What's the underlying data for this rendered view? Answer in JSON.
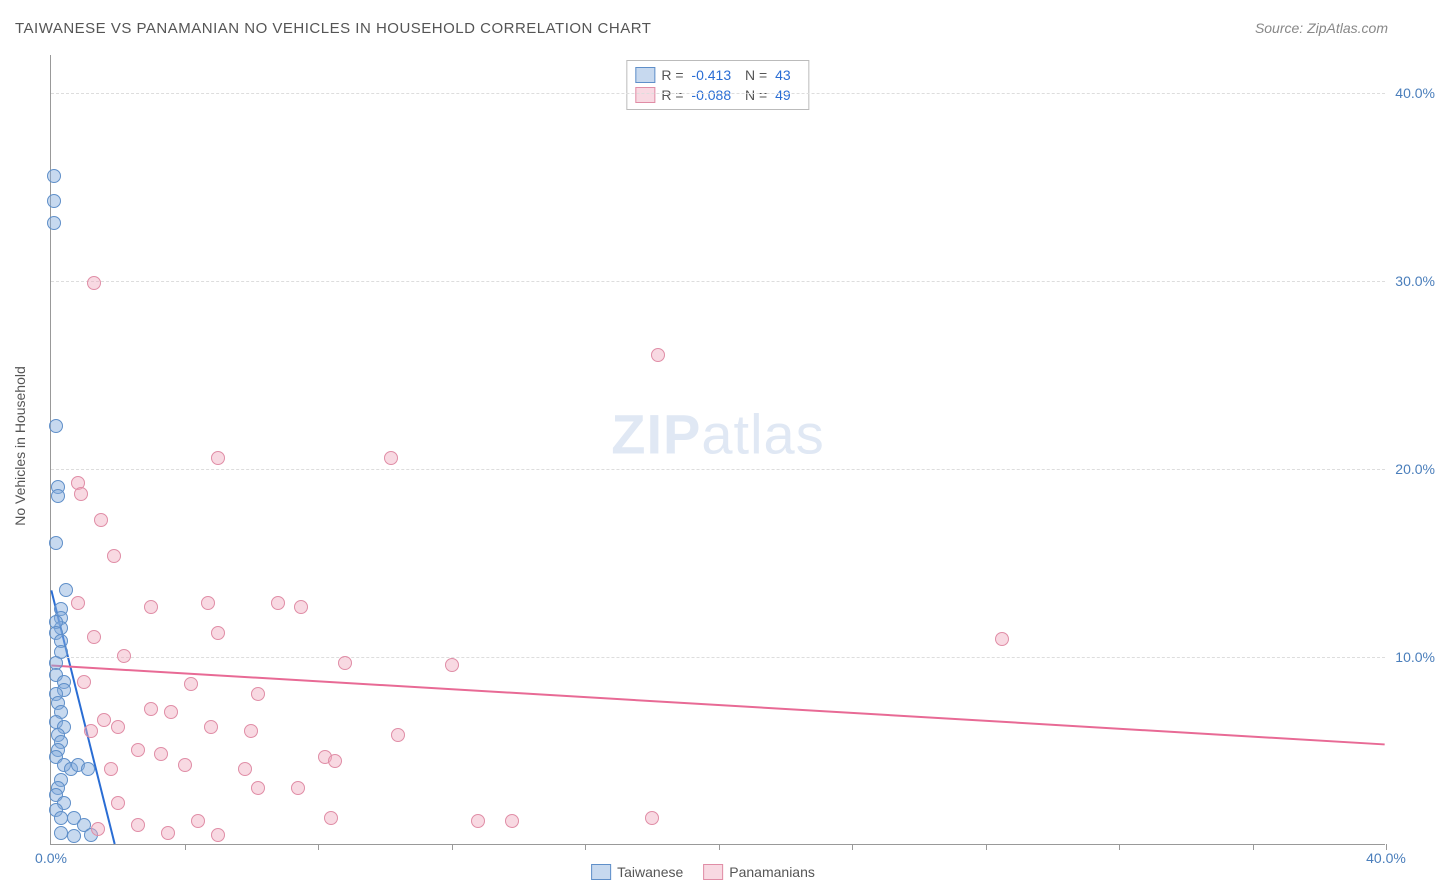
{
  "title": "TAIWANESE VS PANAMANIAN NO VEHICLES IN HOUSEHOLD CORRELATION CHART",
  "source": "Source: ZipAtlas.com",
  "y_axis_label": "No Vehicles in Household",
  "watermark_zip": "ZIP",
  "watermark_atlas": "atlas",
  "chart": {
    "xlim": [
      0,
      40
    ],
    "ylim": [
      0,
      42
    ],
    "y_ticks": [
      10,
      20,
      30,
      40
    ],
    "y_tick_labels": [
      "10.0%",
      "20.0%",
      "30.0%",
      "40.0%"
    ],
    "x_ticks": [
      4,
      8,
      12,
      16,
      20,
      24,
      28,
      32,
      36,
      40
    ],
    "x_tick_labels": {
      "0": "0.0%",
      "40": "40.0%"
    },
    "grid_color": "#dddddd",
    "axis_color": "#999999",
    "background_color": "#ffffff",
    "title_color": "#555555",
    "label_color": "#555555",
    "tick_label_color": "#4a7ebb",
    "point_radius": 7
  },
  "series": [
    {
      "name": "Taiwanese",
      "fill": "rgba(130,170,220,0.45)",
      "stroke": "#5f8fc9",
      "trend_color": "#2a6dd4",
      "trend": {
        "x1": 0,
        "y1": 13.5,
        "x2": 1.9,
        "y2": 0
      },
      "stats": {
        "R": "-0.413",
        "N": "43"
      },
      "points": [
        [
          0.1,
          35.5
        ],
        [
          0.1,
          34.2
        ],
        [
          0.1,
          33.0
        ],
        [
          0.15,
          22.2
        ],
        [
          0.2,
          19.0
        ],
        [
          0.2,
          18.5
        ],
        [
          0.15,
          16.0
        ],
        [
          0.45,
          13.5
        ],
        [
          0.3,
          12.5
        ],
        [
          0.3,
          12.0
        ],
        [
          0.3,
          11.5
        ],
        [
          0.15,
          11.8
        ],
        [
          0.15,
          11.2
        ],
        [
          0.3,
          10.8
        ],
        [
          0.3,
          10.2
        ],
        [
          0.15,
          9.6
        ],
        [
          0.15,
          9.0
        ],
        [
          0.4,
          8.6
        ],
        [
          0.4,
          8.2
        ],
        [
          0.15,
          8.0
        ],
        [
          0.2,
          7.5
        ],
        [
          0.3,
          7.0
        ],
        [
          0.15,
          6.5
        ],
        [
          0.4,
          6.2
        ],
        [
          0.2,
          5.8
        ],
        [
          0.3,
          5.4
        ],
        [
          0.2,
          5.0
        ],
        [
          0.15,
          4.6
        ],
        [
          0.4,
          4.2
        ],
        [
          0.6,
          4.0
        ],
        [
          0.8,
          4.2
        ],
        [
          1.1,
          4.0
        ],
        [
          0.3,
          3.4
        ],
        [
          0.2,
          3.0
        ],
        [
          0.15,
          2.6
        ],
        [
          0.4,
          2.2
        ],
        [
          0.15,
          1.8
        ],
        [
          0.3,
          1.4
        ],
        [
          0.7,
          1.4
        ],
        [
          1.0,
          1.0
        ],
        [
          0.3,
          0.6
        ],
        [
          0.7,
          0.4
        ],
        [
          1.2,
          0.5
        ]
      ]
    },
    {
      "name": "Panamanians",
      "fill": "rgba(240,170,190,0.45)",
      "stroke": "#e08da6",
      "trend_color": "#e86a95",
      "trend": {
        "x1": 0,
        "y1": 9.5,
        "x2": 40,
        "y2": 5.3
      },
      "stats": {
        "R": "-0.088",
        "N": "49"
      },
      "points": [
        [
          1.3,
          29.8
        ],
        [
          18.2,
          26.0
        ],
        [
          5.0,
          20.5
        ],
        [
          10.2,
          20.5
        ],
        [
          0.8,
          19.2
        ],
        [
          0.9,
          18.6
        ],
        [
          1.5,
          17.2
        ],
        [
          1.9,
          15.3
        ],
        [
          0.8,
          12.8
        ],
        [
          3.0,
          12.6
        ],
        [
          4.7,
          12.8
        ],
        [
          6.8,
          12.8
        ],
        [
          7.5,
          12.6
        ],
        [
          5.0,
          11.2
        ],
        [
          1.3,
          11.0
        ],
        [
          28.5,
          10.9
        ],
        [
          2.2,
          10.0
        ],
        [
          8.8,
          9.6
        ],
        [
          12.0,
          9.5
        ],
        [
          1.0,
          8.6
        ],
        [
          4.2,
          8.5
        ],
        [
          6.2,
          8.0
        ],
        [
          3.0,
          7.2
        ],
        [
          3.6,
          7.0
        ],
        [
          1.6,
          6.6
        ],
        [
          1.2,
          6.0
        ],
        [
          2.0,
          6.2
        ],
        [
          4.8,
          6.2
        ],
        [
          6.0,
          6.0
        ],
        [
          10.4,
          5.8
        ],
        [
          2.6,
          5.0
        ],
        [
          3.3,
          4.8
        ],
        [
          8.2,
          4.6
        ],
        [
          8.5,
          4.4
        ],
        [
          1.8,
          4.0
        ],
        [
          4.0,
          4.2
        ],
        [
          5.8,
          4.0
        ],
        [
          6.2,
          3.0
        ],
        [
          7.4,
          3.0
        ],
        [
          2.0,
          2.2
        ],
        [
          4.4,
          1.2
        ],
        [
          8.4,
          1.4
        ],
        [
          12.8,
          1.2
        ],
        [
          13.8,
          1.2
        ],
        [
          18.0,
          1.4
        ],
        [
          2.6,
          1.0
        ],
        [
          1.4,
          0.8
        ],
        [
          3.5,
          0.6
        ],
        [
          5.0,
          0.5
        ]
      ]
    }
  ],
  "stats_box_labels": {
    "R_prefix": "R =",
    "N_prefix": "N ="
  },
  "legend_labels": [
    "Taiwanese",
    "Panamanians"
  ]
}
